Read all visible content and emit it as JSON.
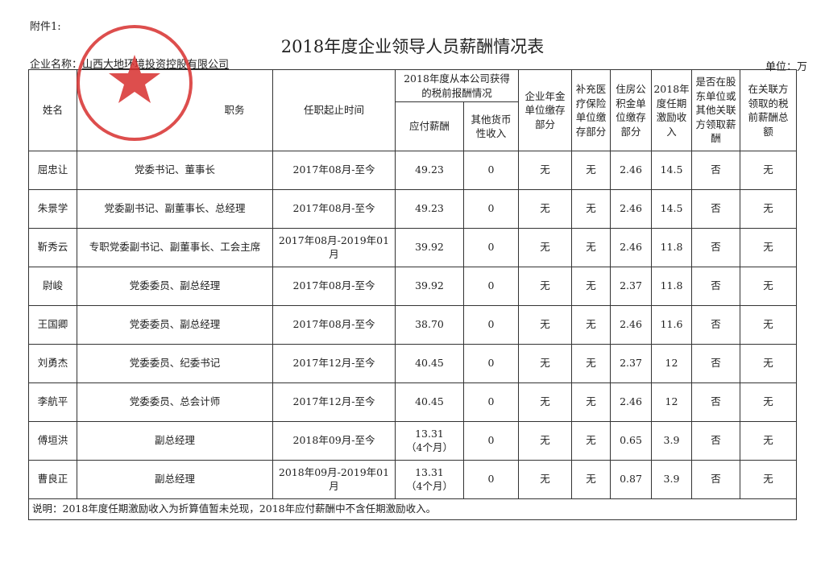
{
  "attachment_label": "附件1:",
  "title": "2018年度企业领导人员薪酬情况表",
  "company_label": "企业名称：",
  "company_name": "山西大地环境投资控股有限公司",
  "unit_label": "单位：万",
  "stamp_text": "山西大地环境投资控股有限公司",
  "stamp_color": "#d8302f",
  "headers": {
    "name": "姓名",
    "position": "职务",
    "tenure": "任职起止时间",
    "pretax_group": "2018年度从本公司获得的税前报酬情况",
    "salary": "应付薪酬",
    "other_income": "其他货币性收入",
    "annuity": "企业年金单位缴存部分",
    "medical": "补充医疗保险单位缴存部分",
    "housing": "住房公积金单位缴存部分",
    "incentive": "2018年度任期激励收入",
    "shareholder": "是否在股东单位或其他关联方领取薪酬",
    "related_total": "在关联方领取的税前薪酬总额"
  },
  "rows": [
    {
      "name": "屈忠让",
      "position": "党委书记、董事长",
      "tenure": "2017年08月-至今",
      "salary": "49.23",
      "salary_note": "",
      "other": "0",
      "annuity": "无",
      "medical": "无",
      "housing": "2.46",
      "incentive": "14.5",
      "shareholder": "否",
      "related": "无"
    },
    {
      "name": "朱景学",
      "position": "党委副书记、副董事长、总经理",
      "tenure": "2017年08月-至今",
      "salary": "49.23",
      "salary_note": "",
      "other": "0",
      "annuity": "无",
      "medical": "无",
      "housing": "2.46",
      "incentive": "14.5",
      "shareholder": "否",
      "related": "无"
    },
    {
      "name": "靳秀云",
      "position": "专职党委副书记、副董事长、工会主席",
      "tenure": "2017年08月-2019年01月",
      "salary": "39.92",
      "salary_note": "",
      "other": "0",
      "annuity": "无",
      "medical": "无",
      "housing": "2.46",
      "incentive": "11.8",
      "shareholder": "否",
      "related": "无"
    },
    {
      "name": "尉峻",
      "position": "党委委员、副总经理",
      "tenure": "2017年08月-至今",
      "salary": "39.92",
      "salary_note": "",
      "other": "0",
      "annuity": "无",
      "medical": "无",
      "housing": "2.37",
      "incentive": "11.8",
      "shareholder": "否",
      "related": "无"
    },
    {
      "name": "王国卿",
      "position": "党委委员、副总经理",
      "tenure": "2017年08月-至今",
      "salary": "38.70",
      "salary_note": "",
      "other": "0",
      "annuity": "无",
      "medical": "无",
      "housing": "2.46",
      "incentive": "11.6",
      "shareholder": "否",
      "related": "无"
    },
    {
      "name": "刘勇杰",
      "position": "党委委员、纪委书记",
      "tenure": "2017年12月-至今",
      "salary": "40.45",
      "salary_note": "",
      "other": "0",
      "annuity": "无",
      "medical": "无",
      "housing": "2.37",
      "incentive": "12",
      "shareholder": "否",
      "related": "无"
    },
    {
      "name": "李航平",
      "position": "党委委员、总会计师",
      "tenure": "2017年12月-至今",
      "salary": "40.45",
      "salary_note": "",
      "other": "0",
      "annuity": "无",
      "medical": "无",
      "housing": "2.46",
      "incentive": "12",
      "shareholder": "否",
      "related": "无"
    },
    {
      "name": "傅垣洪",
      "position": "副总经理",
      "tenure": "2018年09月-至今",
      "salary": "13.31",
      "salary_note": "（4个月）",
      "other": "0",
      "annuity": "无",
      "medical": "无",
      "housing": "0.65",
      "incentive": "3.9",
      "shareholder": "否",
      "related": "无"
    },
    {
      "name": "曹良正",
      "position": "副总经理",
      "tenure": "2018年09月-2019年01月",
      "salary": "13.31",
      "salary_note": "（4个月）",
      "other": "0",
      "annuity": "无",
      "medical": "无",
      "housing": "0.87",
      "incentive": "3.9",
      "shareholder": "否",
      "related": "无"
    }
  ],
  "note": "说明：2018年度任期激励收入为折算值暂未兑现，2018年应付薪酬中不含任期激励收入。"
}
